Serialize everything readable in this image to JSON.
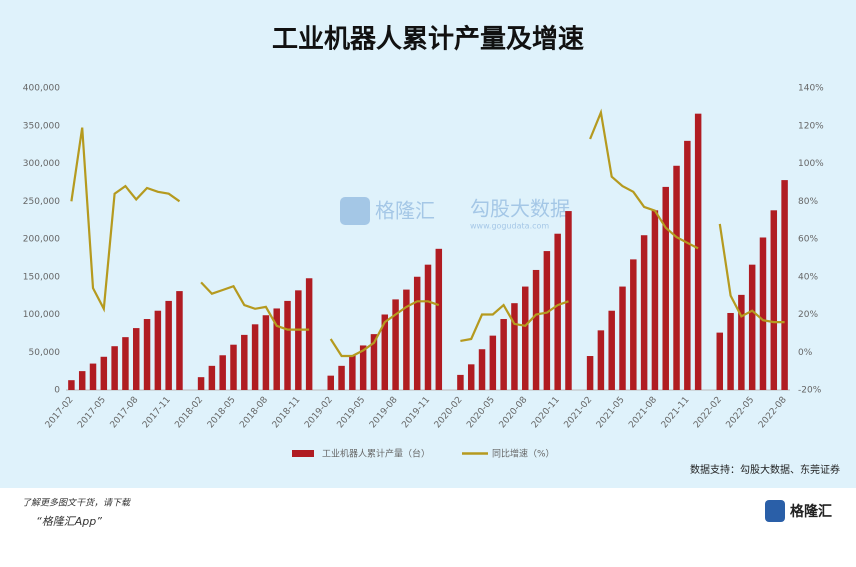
{
  "chart_data": {
    "type": "bar_line",
    "title": "工业机器人累计产量及增速",
    "categories": [
      "2017-02",
      null,
      null,
      "2017-05",
      null,
      null,
      "2017-08",
      null,
      null,
      "2017-11",
      null,
      null,
      "2018-02",
      null,
      null,
      "2018-05",
      null,
      null,
      "2018-08",
      null,
      null,
      "2018-11",
      null,
      null,
      "2019-02",
      null,
      null,
      "2019-05",
      null,
      null,
      "2019-08",
      null,
      null,
      "2019-11",
      null,
      null,
      "2020-02",
      null,
      null,
      "2020-05",
      null,
      null,
      "2020-08",
      null,
      null,
      "2020-11",
      null,
      null,
      "2021-02",
      null,
      null,
      "2021-05",
      null,
      null,
      "2021-08",
      null,
      null,
      "2021-11",
      null,
      null,
      "2022-02",
      null,
      null,
      "2022-05",
      null,
      null,
      "2022-08"
    ],
    "series": [
      {
        "name": "工业机器人累计产量（台）",
        "color": "#b01c22",
        "kind": "bar",
        "values": [
          13000,
          25000,
          35000,
          44000,
          58000,
          70000,
          82000,
          94000,
          105000,
          118000,
          131000,
          null,
          17000,
          32000,
          46000,
          60000,
          73000,
          87000,
          99000,
          108000,
          118000,
          132000,
          148000,
          null,
          19000,
          32000,
          46000,
          59000,
          74000,
          100000,
          120000,
          133000,
          150000,
          166000,
          187000,
          null,
          20000,
          34000,
          54000,
          72000,
          94000,
          115000,
          137000,
          159000,
          184000,
          207000,
          237000,
          null,
          45000,
          79000,
          105000,
          137000,
          173000,
          205000,
          238000,
          269000,
          297000,
          330000,
          366000,
          null,
          76000,
          102000,
          126000,
          166000,
          202000,
          238000,
          278000
        ]
      },
      {
        "name": "同比增速（%）",
        "color": "#b59a1f",
        "kind": "line",
        "axis": "y2",
        "values": [
          80,
          119,
          34,
          23,
          84,
          88,
          81,
          87,
          85,
          84,
          80,
          null,
          37,
          31,
          33,
          35,
          25,
          23,
          24,
          14,
          12,
          12,
          12,
          null,
          7,
          -2,
          -2,
          1,
          5,
          16,
          20,
          24,
          27,
          27,
          25,
          null,
          6,
          7,
          20,
          20,
          25,
          15,
          14,
          20,
          21,
          25,
          27,
          null,
          113,
          127,
          93,
          88,
          85,
          77,
          75,
          66,
          61,
          58,
          55,
          null,
          68,
          30,
          19,
          22,
          17,
          16,
          16
        ]
      }
    ],
    "ylim": [
      0,
      400000
    ],
    "yticks": [
      0,
      {
        "value": 50000,
        "label": "50,000"
      },
      {
        "value": 100000,
        "label": "100,000"
      },
      {
        "value": 150000,
        "label": "150,000"
      },
      {
        "value": 200000,
        "label": "200,000"
      },
      {
        "value": 250000,
        "label": "250,000"
      },
      {
        "value": 300000,
        "label": "300,000"
      },
      {
        "value": 350000,
        "label": "350,000"
      },
      {
        "value": 400000,
        "label": "400,000"
      }
    ],
    "y2lim": [
      -20,
      140
    ],
    "y2ticks": [
      {
        "value": -20,
        "label": "-20%"
      },
      {
        "value": 0,
        "label": "0%"
      },
      {
        "value": 20,
        "label": "20%"
      },
      {
        "value": 40,
        "label": "40%"
      },
      {
        "value": 60,
        "label": "60%"
      },
      {
        "value": 80,
        "label": "80%"
      },
      {
        "value": 100,
        "label": "100%"
      },
      {
        "value": 120,
        "label": "120%"
      },
      {
        "value": 140,
        "label": "140%"
      }
    ],
    "source": "数据支持：勾股大数据、东莞证券",
    "legend": "bottom"
  },
  "page": {
    "watermark1": "格隆汇",
    "watermark2": "勾股大数据",
    "watermark_url": "www.gogudata.com",
    "footer_line1": "了解更多图文干货，请下载",
    "footer_line2": "“格隆汇App”",
    "logo": "格隆汇"
  }
}
